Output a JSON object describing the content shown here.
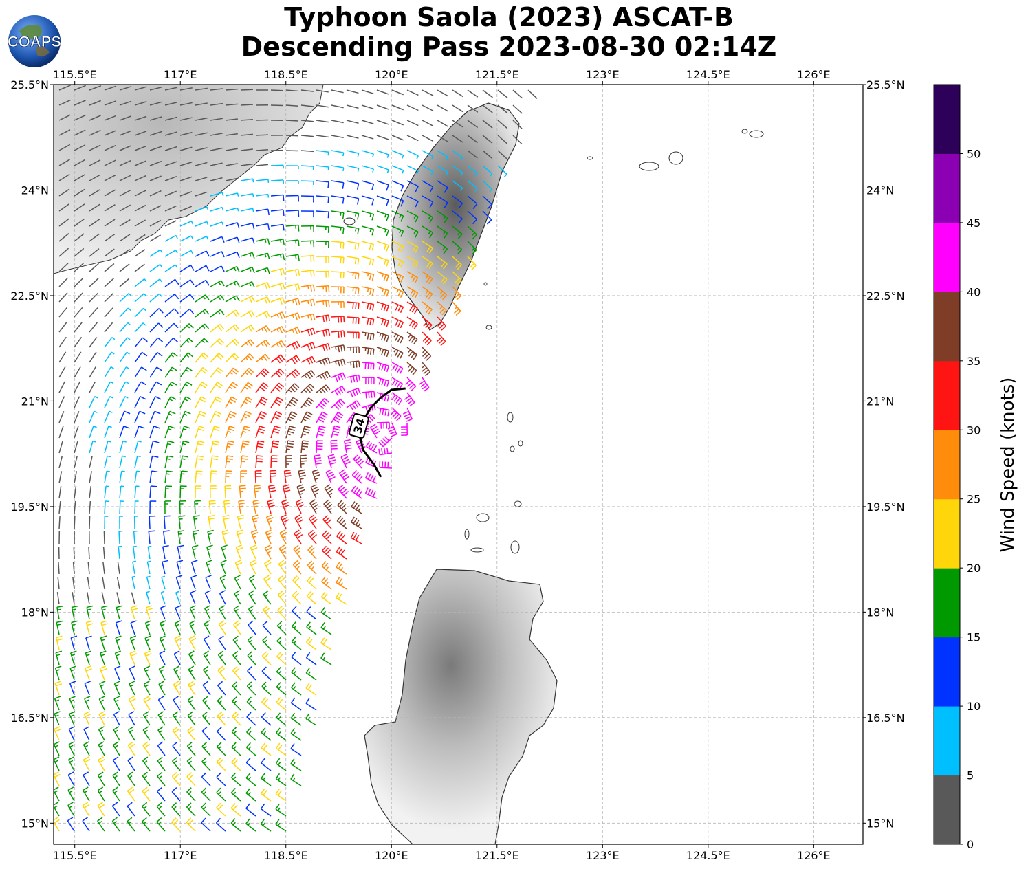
{
  "title": {
    "line1": "Typhoon Saola (2023) ASCAT-B",
    "line2": "Descending Pass 2023-08-30 02:14Z"
  },
  "logo": {
    "text": "COAPS"
  },
  "axes": {
    "lon_min": 115.2,
    "lon_max": 126.7,
    "lat_min": 14.7,
    "lat_max": 25.5,
    "lon_ticks": [
      115.5,
      117,
      118.5,
      120,
      121.5,
      123,
      124.5,
      126
    ],
    "lon_tick_labels": [
      "115.5°E",
      "117°E",
      "118.5°E",
      "120°E",
      "121.5°E",
      "123°E",
      "124.5°E",
      "126°E"
    ],
    "lat_ticks": [
      25.5,
      24,
      22.5,
      21,
      19.5,
      18,
      16.5,
      15
    ],
    "lat_tick_labels": [
      "25.5°N",
      "24°N",
      "22.5°N",
      "21°N",
      "19.5°N",
      "18°N",
      "16.5°N",
      "15°N"
    ],
    "grid": true
  },
  "storm": {
    "center_lon": 119.85,
    "center_lat": 20.55,
    "radius_label": "34",
    "radius_lon": [
      120.2,
      120.0,
      119.85,
      119.7,
      119.6,
      119.55,
      119.6,
      119.75,
      119.85
    ],
    "radius_lat": [
      21.18,
      21.16,
      21.05,
      20.9,
      20.72,
      20.5,
      20.3,
      20.1,
      19.92
    ]
  },
  "colorbar": {
    "label": "Wind Speed (knots)",
    "tick_labels": [
      "0",
      "5",
      "10",
      "15",
      "20",
      "25",
      "30",
      "35",
      "40",
      "45",
      "50"
    ],
    "ticks": [
      0,
      5,
      10,
      15,
      20,
      25,
      30,
      35,
      40,
      45,
      50
    ],
    "colors": [
      "#595959",
      "#00bfff",
      "#0033ff",
      "#009900",
      "#ffd60a",
      "#ff8c0a",
      "#ff1414",
      "#7f3d28",
      "#ff00ff",
      "#8c00b4",
      "#2d005a"
    ]
  }
}
